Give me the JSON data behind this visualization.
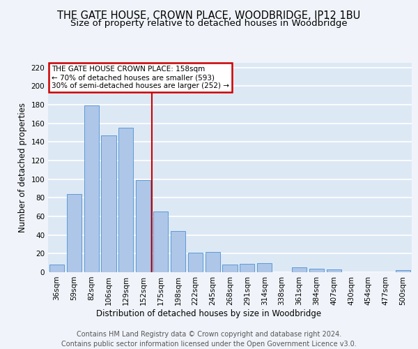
{
  "title": "THE GATE HOUSE, CROWN PLACE, WOODBRIDGE, IP12 1BU",
  "subtitle": "Size of property relative to detached houses in Woodbridge",
  "xlabel": "Distribution of detached houses by size in Woodbridge",
  "ylabel": "Number of detached properties",
  "footer_line1": "Contains HM Land Registry data © Crown copyright and database right 2024.",
  "footer_line2": "Contains public sector information licensed under the Open Government Licence v3.0.",
  "categories": [
    "36sqm",
    "59sqm",
    "82sqm",
    "106sqm",
    "129sqm",
    "152sqm",
    "175sqm",
    "198sqm",
    "222sqm",
    "245sqm",
    "268sqm",
    "291sqm",
    "314sqm",
    "338sqm",
    "361sqm",
    "384sqm",
    "407sqm",
    "430sqm",
    "454sqm",
    "477sqm",
    "500sqm"
  ],
  "values": [
    8,
    84,
    179,
    147,
    155,
    99,
    65,
    44,
    21,
    22,
    8,
    9,
    10,
    0,
    5,
    4,
    3,
    0,
    0,
    0,
    2
  ],
  "bar_color": "#aec6e8",
  "bar_edge_color": "#5b9bd5",
  "background_color": "#dde8f5",
  "grid_color": "#ffffff",
  "vline_x": 5.5,
  "vline_color": "#cc0000",
  "annotation_text": "THE GATE HOUSE CROWN PLACE: 158sqm\n← 70% of detached houses are smaller (593)\n30% of semi-detached houses are larger (252) →",
  "annotation_box_color": "#cc0000",
  "ylim": [
    0,
    225
  ],
  "yticks": [
    0,
    20,
    40,
    60,
    80,
    100,
    120,
    140,
    160,
    180,
    200,
    220
  ],
  "title_fontsize": 10.5,
  "subtitle_fontsize": 9.5,
  "axis_label_fontsize": 8.5,
  "tick_fontsize": 7.5,
  "footer_fontsize": 7.0,
  "fig_bg_color": "#f0f4fa"
}
